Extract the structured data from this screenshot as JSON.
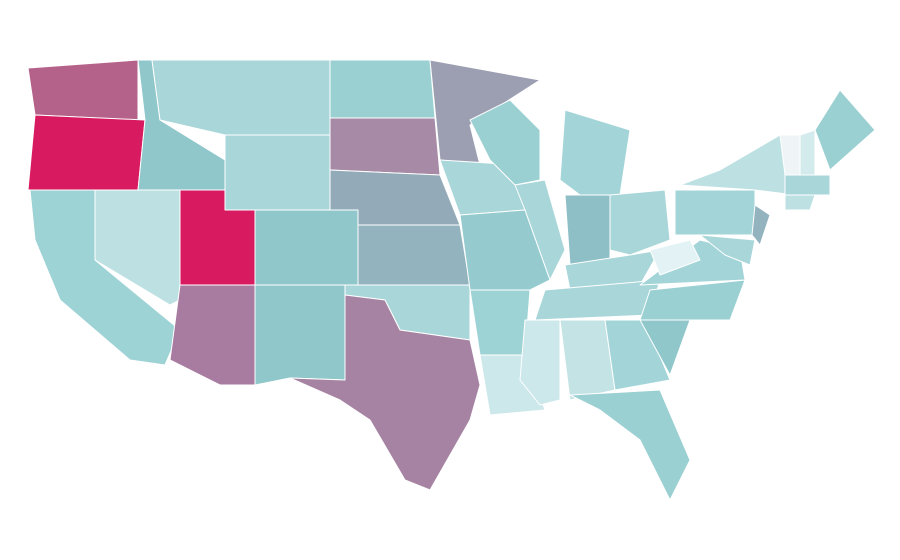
{
  "map": {
    "regions": [
      {
        "color": "#b5628a"
      },
      {
        "color": "#d81b60"
      },
      {
        "color": "#9ed3d6"
      },
      {
        "color": "#bde0e3"
      },
      {
        "color": "#8fc7cb"
      },
      {
        "color": "#a8d6d9"
      },
      {
        "color": "#a8d6d9"
      },
      {
        "color": "#d81b60"
      },
      {
        "color": "#8fc7cb"
      },
      {
        "color": "#a87ba0"
      },
      {
        "color": "#8fc7cb"
      },
      {
        "color": "#9bd0d3"
      },
      {
        "color": "#a68aa6"
      },
      {
        "color": "#93abb8"
      },
      {
        "color": "#93b3bf"
      },
      {
        "color": "#a8d6d9"
      },
      {
        "color": "#a683a3"
      },
      {
        "color": "#9c9fb1"
      },
      {
        "color": "#a8d6d9"
      },
      {
        "color": "#95cbcf"
      },
      {
        "color": "#9ed3d6"
      },
      {
        "color": "#cde8eb"
      },
      {
        "color": "#9bd0d3"
      },
      {
        "color": "#a8d6d9"
      },
      {
        "color": "#a3d4d7"
      },
      {
        "color": "#8fbfc6"
      },
      {
        "color": "#a8d6d9"
      },
      {
        "color": "#a8d6d9"
      },
      {
        "color": "#a8d6d9"
      },
      {
        "color": "#cde8eb"
      },
      {
        "color": "#c4e3e5"
      },
      {
        "color": "#a3d4d7"
      },
      {
        "color": "#9bd0d3"
      },
      {
        "color": "#8fc7cb"
      },
      {
        "color": "#9bd0d3"
      },
      {
        "color": "#a3d4d7"
      },
      {
        "color": "#e3f2f4"
      },
      {
        "color": "#a3d4d7"
      },
      {
        "color": "#bde0e3"
      },
      {
        "color": "#93b3bf"
      },
      {
        "color": "#a8d6d9"
      },
      {
        "color": "#eff4f6"
      },
      {
        "color": "#d4ebee"
      },
      {
        "color": "#9bd0d3"
      },
      {
        "color": "#a8d6d9"
      },
      {
        "color": "#bde0e3"
      }
    ]
  }
}
